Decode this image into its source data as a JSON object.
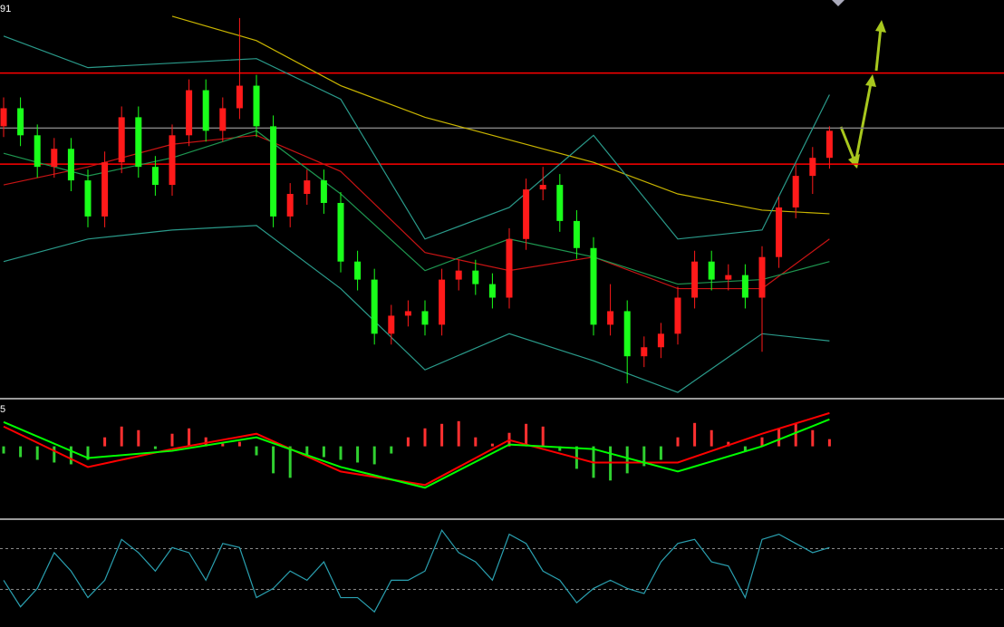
{
  "chart_data": [
    {
      "type": "candlestick",
      "label": "91",
      "ylim": [
        0,
        440
      ],
      "up_color": "#ff1a1a",
      "down_color": "#1aff1a",
      "open": [
        300,
        320,
        290,
        255,
        275,
        240,
        200,
        260,
        310,
        255,
        235,
        290,
        340,
        295,
        320,
        345,
        300,
        200,
        225,
        240,
        215,
        150,
        130,
        70,
        90,
        95,
        80,
        130,
        140,
        125,
        110,
        175,
        230,
        235,
        195,
        165,
        80,
        95,
        45,
        55,
        70,
        110,
        150,
        130,
        135,
        110,
        155,
        210,
        245,
        265
      ],
      "high": [
        332,
        332,
        302,
        287,
        287,
        252,
        272,
        322,
        322,
        267,
        302,
        352,
        352,
        332,
        420,
        357,
        312,
        237,
        252,
        252,
        227,
        162,
        142,
        102,
        107,
        107,
        142,
        152,
        152,
        137,
        187,
        242,
        255,
        247,
        207,
        177,
        125,
        107,
        67,
        82,
        122,
        162,
        162,
        147,
        147,
        167,
        222,
        257,
        277,
        300
      ],
      "low": [
        288,
        278,
        243,
        243,
        228,
        188,
        188,
        248,
        243,
        223,
        223,
        278,
        283,
        283,
        308,
        288,
        188,
        188,
        213,
        203,
        138,
        118,
        58,
        58,
        78,
        68,
        68,
        118,
        113,
        98,
        98,
        163,
        218,
        183,
        153,
        68,
        68,
        15,
        33,
        43,
        58,
        98,
        118,
        118,
        98,
        50,
        143,
        198,
        225,
        253
      ],
      "close": [
        320,
        290,
        255,
        275,
        240,
        200,
        260,
        310,
        255,
        235,
        290,
        340,
        295,
        320,
        345,
        300,
        200,
        225,
        240,
        215,
        150,
        130,
        70,
        90,
        95,
        80,
        130,
        140,
        125,
        110,
        175,
        230,
        235,
        195,
        165,
        80,
        95,
        45,
        55,
        70,
        110,
        150,
        130,
        135,
        110,
        155,
        210,
        245,
        265,
        295
      ],
      "levels": [
        {
          "value": 359,
          "color": "#ff0000"
        },
        {
          "value": 298,
          "color": "#808080"
        },
        {
          "value": 258,
          "color": "#ff0000"
        }
      ],
      "overlays": [
        {
          "color": "#c8b400",
          "x": [
            0,
            5,
            10,
            15,
            20,
            25,
            30,
            35,
            40,
            45,
            49
          ],
          "values": [
            null,
            null,
            422,
            395,
            345,
            310,
            285,
            260,
            225,
            207,
            203
          ]
        },
        {
          "color": "#c81414",
          "x": [
            0,
            5,
            10,
            15,
            20,
            25,
            30,
            35,
            40,
            45,
            49
          ],
          "values": [
            235,
            255,
            280,
            290,
            250,
            160,
            140,
            155,
            120,
            120,
            175
          ]
        },
        {
          "color": "#1e9650",
          "x": [
            0,
            5,
            10,
            15,
            20,
            25,
            30,
            35,
            40,
            45,
            49
          ],
          "values": [
            270,
            245,
            265,
            295,
            225,
            140,
            175,
            155,
            125,
            130,
            150
          ]
        },
        {
          "color": "#2a9a8a",
          "x": [
            0,
            5,
            10,
            15,
            20,
            25,
            30,
            35,
            40,
            45,
            49
          ],
          "values": [
            400,
            365,
            370,
            375,
            330,
            175,
            210,
            290,
            175,
            185,
            335
          ]
        },
        {
          "color": "#2a9a8a",
          "x": [
            0,
            5,
            10,
            15,
            20,
            25,
            30,
            35,
            40,
            45,
            49
          ],
          "values": [
            150,
            175,
            185,
            190,
            120,
            30,
            70,
            40,
            5,
            70,
            62
          ]
        }
      ]
    },
    {
      "type": "macd",
      "label": "5",
      "ylim": [
        -80,
        52
      ],
      "up_color": "#ff3030",
      "down_color": "#30d030",
      "values": [
        -8,
        -12,
        -15,
        -18,
        -20,
        -15,
        10,
        22,
        18,
        -3,
        14,
        20,
        10,
        3,
        5,
        -10,
        -30,
        -35,
        -10,
        -12,
        -15,
        -18,
        -20,
        -8,
        10,
        20,
        25,
        28,
        10,
        3,
        15,
        25,
        22,
        -5,
        -25,
        -35,
        -38,
        -30,
        -22,
        -15,
        10,
        26,
        18,
        5,
        -5,
        10,
        20,
        25,
        18,
        8
      ],
      "series": [
        {
          "color": "#ff0000",
          "x": [
            0,
            5,
            10,
            15,
            20,
            25,
            30,
            35,
            40,
            45,
            49
          ],
          "values": [
            22,
            -23,
            -3,
            14,
            -28,
            -43,
            7,
            -18,
            -18,
            14,
            37
          ]
        },
        {
          "color": "#00ff00",
          "x": [
            0,
            5,
            10,
            15,
            20,
            25,
            30,
            35,
            40,
            45,
            49
          ],
          "values": [
            27,
            -13,
            -5,
            10,
            -23,
            -46,
            2,
            -3,
            -28,
            0,
            30
          ]
        }
      ]
    },
    {
      "type": "oscillator",
      "ylim": [
        -5,
        97
      ],
      "color": "#2aa0b0",
      "levels": [
        70,
        30
      ],
      "values": [
        39,
        13,
        31,
        66,
        48,
        22,
        39,
        79,
        66,
        48,
        71,
        66,
        39,
        75,
        71,
        22,
        31,
        48,
        39,
        57,
        22,
        22,
        8,
        39,
        39,
        48,
        88,
        66,
        57,
        39,
        84,
        75,
        48,
        39,
        17,
        31,
        39,
        31,
        26,
        57,
        75,
        79,
        57,
        53,
        22,
        79,
        84,
        75,
        66,
        71
      ]
    }
  ]
}
